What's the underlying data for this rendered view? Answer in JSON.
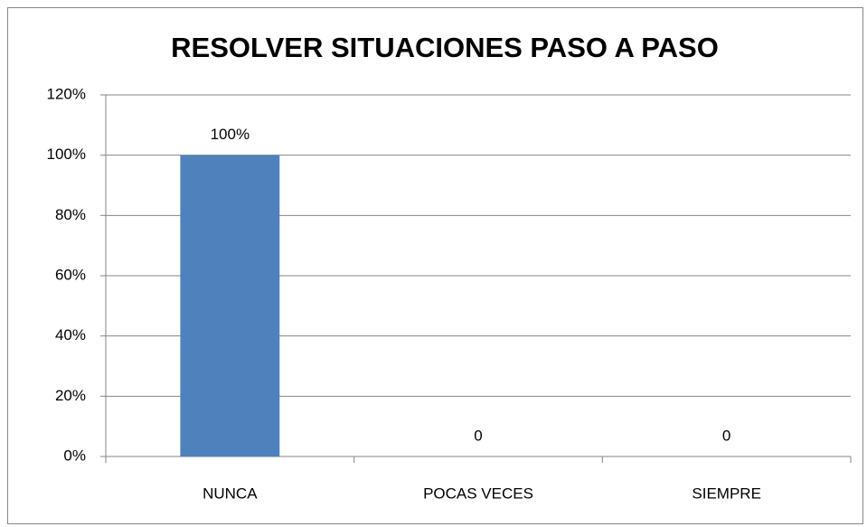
{
  "chart_data": {
    "type": "bar",
    "title": "RESOLVER SITUACIONES PASO A PASO",
    "categories": [
      "NUNCA",
      "POCAS VECES",
      "SIEMPRE"
    ],
    "values": [
      100,
      0,
      0
    ],
    "value_labels": [
      "100%",
      "0",
      "0"
    ],
    "color": "#4f81bd",
    "ylim": [
      0,
      120
    ],
    "yticks": [
      {
        "value": 0,
        "label": "0%"
      },
      {
        "value": 20,
        "label": "20%"
      },
      {
        "value": 40,
        "label": "40%"
      },
      {
        "value": 60,
        "label": "60%"
      },
      {
        "value": 80,
        "label": "80%"
      },
      {
        "value": 100,
        "label": "100%"
      },
      {
        "value": 120,
        "label": "120%"
      }
    ],
    "grid": true
  }
}
